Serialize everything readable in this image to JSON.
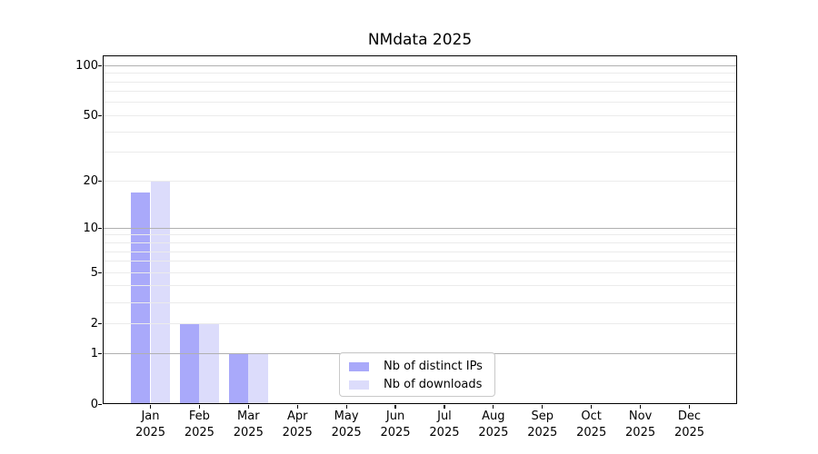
{
  "title": "NMdata 2025",
  "chart_data": {
    "type": "bar",
    "title": "NMdata 2025",
    "categories": [
      "Jan",
      "Feb",
      "Mar",
      "Apr",
      "May",
      "Jun",
      "Jul",
      "Aug",
      "Sep",
      "Oct",
      "Nov",
      "Dec"
    ],
    "year_label": "2025",
    "series": [
      {
        "name": "Nb of distinct IPs",
        "color": "#a9a9fa",
        "values": [
          17,
          2,
          1,
          0,
          0,
          0,
          0,
          0,
          0,
          0,
          0,
          0
        ]
      },
      {
        "name": "Nb of downloads",
        "color": "#dcdcfb",
        "values": [
          20,
          2,
          1,
          0,
          0,
          0,
          0,
          0,
          0,
          0,
          0,
          0
        ]
      }
    ],
    "y_scale": "log1p",
    "ylim": [
      0,
      115
    ],
    "y_ticks": [
      0,
      1,
      2,
      5,
      10,
      20,
      50,
      100
    ],
    "y_major_grid": [
      1,
      10,
      100
    ],
    "y_minor_grid": [
      2,
      3,
      4,
      5,
      6,
      7,
      8,
      9,
      20,
      30,
      40,
      50,
      60,
      70,
      80,
      90
    ],
    "grid_major_color": "#b0b0b0",
    "grid_minor_color": "#ebebeb",
    "legend_position": "lower center",
    "grid": "horizontal only"
  }
}
